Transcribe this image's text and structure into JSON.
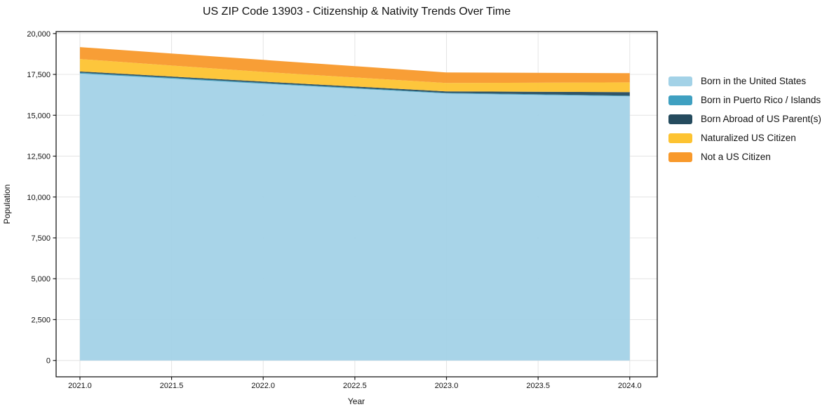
{
  "title": "US ZIP Code 13903 - Citizenship & Nativity Trends Over Time",
  "chart_data": {
    "type": "area",
    "stacked": true,
    "title": "US ZIP Code 13903 - Citizenship & Nativity Trends Over Time",
    "xlabel": "Year",
    "ylabel": "Population",
    "x": [
      2021,
      2022,
      2023,
      2024
    ],
    "series": [
      {
        "name": "Born in the United States",
        "color": "#A3D2E7",
        "values": [
          17550,
          16930,
          16330,
          16160
        ]
      },
      {
        "name": "Born in Puerto Rico / Islands",
        "color": "#3FA0C1",
        "values": [
          60,
          50,
          40,
          40
        ]
      },
      {
        "name": "Born Abroad of US Parent(s)",
        "color": "#254B5E",
        "values": [
          70,
          80,
          90,
          215
        ]
      },
      {
        "name": "Naturalized US Citizen",
        "color": "#FDC331",
        "values": [
          760,
          590,
          515,
          600
        ]
      },
      {
        "name": "Not a US Citizen",
        "color": "#F8992B",
        "values": [
          730,
          740,
          645,
          560
        ]
      }
    ],
    "totals": [
      19170,
      18390,
      17620,
      17575
    ],
    "xlim": [
      2020.87,
      2024.15
    ],
    "ylim": [
      -1000,
      20120
    ],
    "x_ticks": [
      2021.0,
      2021.5,
      2022.0,
      2022.5,
      2023.0,
      2023.5,
      2024.0
    ],
    "x_tick_labels": [
      "2021.0",
      "2021.5",
      "2022.0",
      "2022.5",
      "2023.0",
      "2023.5",
      "2024.0"
    ],
    "y_ticks": [
      0,
      2500,
      5000,
      7500,
      10000,
      12500,
      15000,
      17500,
      20000
    ],
    "y_tick_labels": [
      "0",
      "2,500",
      "5,000",
      "7,500",
      "10,000",
      "12,500",
      "15,000",
      "17,500",
      "20,000"
    ],
    "grid": true,
    "legend_position": "right",
    "colors": {
      "grid": "#e4e4e4",
      "spine": "#1a1a1a",
      "tick_label": "#111111",
      "background": "#ffffff"
    }
  }
}
